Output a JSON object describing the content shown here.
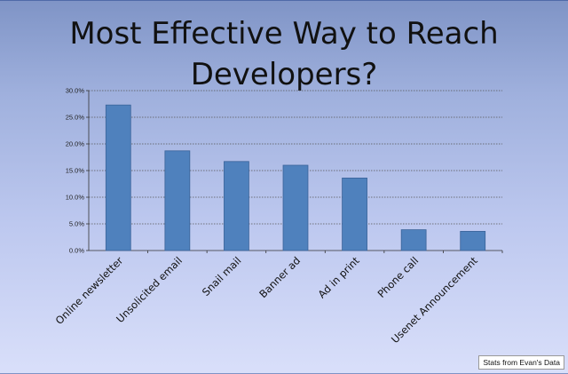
{
  "slide": {
    "footnote": "Stats from Evan's Data"
  },
  "chart_data": {
    "type": "bar",
    "title_lines": [
      "Most Effective Way to Reach",
      "Developers?"
    ],
    "categories": [
      "Online newsletter",
      "Unsolicited email",
      "Snail mail",
      "Banner ad",
      "Ad in print",
      "Phone call",
      "Usenet Announcement"
    ],
    "values": [
      27.3,
      18.7,
      16.7,
      16.0,
      13.6,
      3.9,
      3.6
    ],
    "unit": "%",
    "ylim": [
      0,
      30
    ],
    "ytick_labels": [
      "0.0%",
      "5.0%",
      "10.0%",
      "15.0%",
      "20.0%",
      "25.0%",
      "30.0%"
    ],
    "yticks": [
      0,
      5,
      10,
      15,
      20,
      25,
      30
    ],
    "grid": true,
    "bar_color": "#4f81bd",
    "bar_edge_color": "#3a6399"
  }
}
